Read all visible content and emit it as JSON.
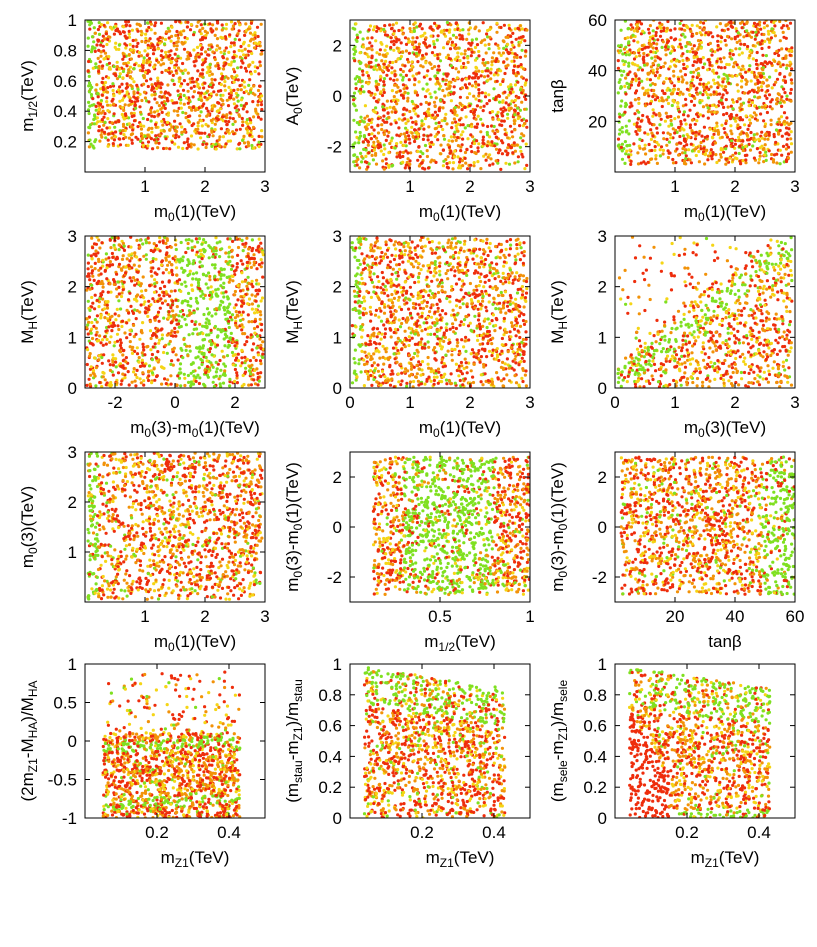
{
  "figure": {
    "description_colors": {
      "red": "#ee2d0c",
      "orange": "#f29208",
      "yellow": "#f5d515",
      "green": "#7fe020"
    }
  },
  "chart_data": [
    {
      "type": "scatter",
      "id": "p1",
      "xlabel": {
        "main": "m",
        "sub": "0",
        "rest": "(1)(TeV)"
      },
      "ylabel": {
        "main": "m",
        "sub": "1/2",
        "rest": "(TeV)"
      },
      "xlim": [
        0,
        3
      ],
      "ylim": [
        0,
        1
      ],
      "xticks": [
        {
          "v": 1,
          "label": "1"
        },
        {
          "v": 2,
          "label": "2"
        },
        {
          "v": 3,
          "label": "3"
        }
      ],
      "yticks": [
        {
          "v": 0.2,
          "label": "0.2"
        },
        {
          "v": 0.4,
          "label": "0.4"
        },
        {
          "v": 0.6,
          "label": "0.6"
        },
        {
          "v": 0.8,
          "label": "0.8"
        },
        {
          "v": 1,
          "label": "1"
        }
      ],
      "region": {
        "xmin": 0.05,
        "xmax": 2.95,
        "ymin": 0.15,
        "ymax": 1.0
      },
      "band": {
        "x": 0.1,
        "width": 0.1,
        "color": "green"
      }
    },
    {
      "type": "scatter",
      "id": "p2",
      "xlabel": {
        "main": "m",
        "sub": "0",
        "rest": "(1)(TeV)"
      },
      "ylabel": {
        "main": "A",
        "sub": "0",
        "rest": "(TeV)"
      },
      "xlim": [
        0,
        3
      ],
      "ylim": [
        -3,
        3
      ],
      "xticks": [
        {
          "v": 1,
          "label": "1"
        },
        {
          "v": 2,
          "label": "2"
        },
        {
          "v": 3,
          "label": "3"
        }
      ],
      "yticks": [
        {
          "v": -2,
          "label": "-2"
        },
        {
          "v": 0,
          "label": "0"
        },
        {
          "v": 2,
          "label": "2"
        }
      ],
      "region": {
        "xmin": 0.05,
        "xmax": 2.95,
        "ymin": -2.9,
        "ymax": 2.9
      },
      "band": {
        "x": 0.12,
        "width": 0.12,
        "color": "green"
      }
    },
    {
      "type": "scatter",
      "id": "p3",
      "xlabel": {
        "main": "m",
        "sub": "0",
        "rest": "(1)(TeV)"
      },
      "ylabel": {
        "main": "tanβ",
        "sub": "",
        "rest": ""
      },
      "xlim": [
        0,
        3
      ],
      "ylim": [
        0,
        60
      ],
      "xticks": [
        {
          "v": 1,
          "label": "1"
        },
        {
          "v": 2,
          "label": "2"
        },
        {
          "v": 3,
          "label": "3"
        }
      ],
      "yticks": [
        {
          "v": 20,
          "label": "20"
        },
        {
          "v": 40,
          "label": "40"
        },
        {
          "v": 60,
          "label": "60"
        }
      ],
      "region": {
        "xmin": 0.05,
        "xmax": 2.95,
        "ymin": 3,
        "ymax": 60
      },
      "band": {
        "x": 0.12,
        "width": 0.12,
        "color": "green"
      }
    },
    {
      "type": "scatter",
      "id": "p4",
      "xlabel": {
        "main": "m",
        "sub": "0",
        "rest": "(3)-m",
        "sub2": "0",
        "rest2": "(1)(TeV)"
      },
      "ylabel": {
        "main": "M",
        "sub": "H",
        "rest": "(TeV)"
      },
      "xlim": [
        -3,
        3
      ],
      "ylim": [
        0,
        3
      ],
      "xticks": [
        {
          "v": -2,
          "label": "-2"
        },
        {
          "v": 0,
          "label": "0"
        },
        {
          "v": 2,
          "label": "2"
        }
      ],
      "yticks": [
        {
          "v": 0,
          "label": "0"
        },
        {
          "v": 1,
          "label": "1"
        },
        {
          "v": 2,
          "label": "2"
        },
        {
          "v": 3,
          "label": "3"
        }
      ],
      "region": {
        "xmin": -2.95,
        "xmax": 2.95,
        "ymin": 0.02,
        "ymax": 2.98
      },
      "band": {
        "x": 1.0,
        "width": 0.9,
        "color": "green"
      }
    },
    {
      "type": "scatter",
      "id": "p5",
      "xlabel": {
        "main": "m",
        "sub": "0",
        "rest": "(1)(TeV)"
      },
      "ylabel": {
        "main": "M",
        "sub": "H",
        "rest": "(TeV)"
      },
      "xlim": [
        0,
        3
      ],
      "ylim": [
        0,
        3
      ],
      "xticks": [
        {
          "v": 0,
          "label": "0"
        },
        {
          "v": 1,
          "label": "1"
        },
        {
          "v": 2,
          "label": "2"
        },
        {
          "v": 3,
          "label": "3"
        }
      ],
      "yticks": [
        {
          "v": 0,
          "label": "0"
        },
        {
          "v": 1,
          "label": "1"
        },
        {
          "v": 2,
          "label": "2"
        },
        {
          "v": 3,
          "label": "3"
        }
      ],
      "region": {
        "xmin": 0.03,
        "xmax": 2.95,
        "ymin": 0.02,
        "ymax": 2.98
      },
      "band": {
        "x": 0.1,
        "width": 0.1,
        "color": "green"
      }
    },
    {
      "type": "scatter",
      "id": "p6",
      "xlabel": {
        "main": "m",
        "sub": "0",
        "rest": "(3)(TeV)"
      },
      "ylabel": {
        "main": "M",
        "sub": "H",
        "rest": "(TeV)"
      },
      "xlim": [
        0,
        3
      ],
      "ylim": [
        0,
        3
      ],
      "xticks": [
        {
          "v": 0,
          "label": "0"
        },
        {
          "v": 1,
          "label": "1"
        },
        {
          "v": 2,
          "label": "2"
        },
        {
          "v": 3,
          "label": "3"
        }
      ],
      "yticks": [
        {
          "v": 0,
          "label": "0"
        },
        {
          "v": 1,
          "label": "1"
        },
        {
          "v": 2,
          "label": "2"
        },
        {
          "v": 3,
          "label": "3"
        }
      ],
      "region": {
        "xmin": 0.03,
        "xmax": 2.95,
        "ymin": 0.02,
        "ymax": 2.98
      },
      "band": {
        "diag": true,
        "color": "green"
      }
    },
    {
      "type": "scatter",
      "id": "p7",
      "xlabel": {
        "main": "m",
        "sub": "0",
        "rest": "(1)(TeV)"
      },
      "ylabel": {
        "main": "m",
        "sub": "0",
        "rest": "(3)(TeV)"
      },
      "xlim": [
        0,
        3
      ],
      "ylim": [
        0,
        3
      ],
      "xticks": [
        {
          "v": 1,
          "label": "1"
        },
        {
          "v": 2,
          "label": "2"
        },
        {
          "v": 3,
          "label": "3"
        }
      ],
      "yticks": [
        {
          "v": 1,
          "label": "1"
        },
        {
          "v": 2,
          "label": "2"
        },
        {
          "v": 3,
          "label": "3"
        }
      ],
      "region": {
        "xmin": 0.05,
        "xmax": 2.95,
        "ymin": 0.05,
        "ymax": 2.98
      },
      "band": {
        "x": 0.12,
        "width": 0.1,
        "color": "green"
      }
    },
    {
      "type": "scatter",
      "id": "p8",
      "xlabel": {
        "main": "m",
        "sub": "1/2",
        "rest": "(TeV)"
      },
      "ylabel": {
        "main": "m",
        "sub": "0",
        "rest": "(3)-m",
        "sub2": "0",
        "rest2": "(1)(TeV)"
      },
      "xlim": [
        0,
        1
      ],
      "ylim": [
        -3,
        3
      ],
      "xticks": [
        {
          "v": 0.5,
          "label": "0.5"
        },
        {
          "v": 1,
          "label": "1"
        }
      ],
      "yticks": [
        {
          "v": -2,
          "label": "-2"
        },
        {
          "v": 0,
          "label": "0"
        },
        {
          "v": 2,
          "label": "2"
        }
      ],
      "region": {
        "xmin": 0.13,
        "xmax": 1.0,
        "ymin": -2.7,
        "ymax": 2.8
      },
      "band": {
        "x": 0.55,
        "width": 0.25,
        "color": "green",
        "y": 0.3
      }
    },
    {
      "type": "scatter",
      "id": "p9",
      "xlabel": {
        "main": "tanβ",
        "sub": "",
        "rest": ""
      },
      "ylabel": {
        "main": "m",
        "sub": "0",
        "rest": "(3)-m",
        "sub2": "0",
        "rest2": "(1)(TeV)"
      },
      "xlim": [
        0,
        60
      ],
      "ylim": [
        -3,
        3
      ],
      "xticks": [
        {
          "v": 20,
          "label": "20"
        },
        {
          "v": 40,
          "label": "40"
        },
        {
          "v": 60,
          "label": "60"
        }
      ],
      "yticks": [
        {
          "v": -2,
          "label": "-2"
        },
        {
          "v": 0,
          "label": "0"
        },
        {
          "v": 2,
          "label": "2"
        }
      ],
      "region": {
        "xmin": 2,
        "xmax": 60,
        "ymin": -2.7,
        "ymax": 2.8
      },
      "band": {
        "x": 55,
        "width": 6,
        "color": "green"
      }
    },
    {
      "type": "scatter",
      "id": "p10",
      "xlabel": {
        "main": "m",
        "sub": "Z1",
        "rest": "(TeV)"
      },
      "ylabel": {
        "main": "(2m",
        "sub": "Z1",
        "rest": "-M",
        "sub2": "HA",
        "rest2": ")/M",
        "sub3": "HA"
      },
      "xlim": [
        0,
        0.5
      ],
      "ylim": [
        -1,
        1
      ],
      "xticks": [
        {
          "v": 0.2,
          "label": "0.2"
        },
        {
          "v": 0.4,
          "label": "0.4"
        }
      ],
      "yticks": [
        {
          "v": -1,
          "label": "-1"
        },
        {
          "v": -0.5,
          "label": "-0.5"
        },
        {
          "v": 0,
          "label": "0"
        },
        {
          "v": 0.5,
          "label": "0.5"
        },
        {
          "v": 1,
          "label": "1"
        }
      ],
      "region": {
        "xmin": 0.05,
        "xmax": 0.43,
        "ymin": -1.0,
        "ymax": 0.9
      },
      "band": {
        "bands": [
          -0.05,
          -0.8
        ],
        "color": "green"
      }
    },
    {
      "type": "scatter",
      "id": "p11",
      "xlabel": {
        "main": "m",
        "sub": "Z1",
        "rest": "(TeV)"
      },
      "ylabel": {
        "main": "(m",
        "sub": "stau",
        "rest": "-m",
        "sub2": "Z1",
        "rest2": ")/m",
        "sub3": "stau"
      },
      "xlim": [
        0,
        0.5
      ],
      "ylim": [
        0,
        1
      ],
      "xticks": [
        {
          "v": 0.2,
          "label": "0.2"
        },
        {
          "v": 0.4,
          "label": "0.4"
        }
      ],
      "yticks": [
        {
          "v": 0,
          "label": "0"
        },
        {
          "v": 0.2,
          "label": "0.2"
        },
        {
          "v": 0.4,
          "label": "0.4"
        },
        {
          "v": 0.6,
          "label": "0.6"
        },
        {
          "v": 0.8,
          "label": "0.8"
        },
        {
          "v": 1,
          "label": "1"
        }
      ],
      "region": {
        "xmin": 0.04,
        "xmax": 0.43,
        "ymin": 0.0,
        "ymax": 0.98
      },
      "band": {
        "top": true,
        "color": "green"
      }
    },
    {
      "type": "scatter",
      "id": "p12",
      "xlabel": {
        "main": "m",
        "sub": "Z1",
        "rest": "(TeV)"
      },
      "ylabel": {
        "main": "(m",
        "sub": "sele",
        "rest": "-m",
        "sub2": "Z1",
        "rest2": ")/m",
        "sub3": "sele"
      },
      "xlim": [
        0,
        0.5
      ],
      "ylim": [
        0,
        1
      ],
      "xticks": [
        {
          "v": 0.2,
          "label": "0.2"
        },
        {
          "v": 0.4,
          "label": "0.4"
        }
      ],
      "yticks": [
        {
          "v": 0,
          "label": "0"
        },
        {
          "v": 0.2,
          "label": "0.2"
        },
        {
          "v": 0.4,
          "label": "0.4"
        },
        {
          "v": 0.6,
          "label": "0.6"
        },
        {
          "v": 0.8,
          "label": "0.8"
        },
        {
          "v": 1,
          "label": "1"
        }
      ],
      "region": {
        "xmin": 0.04,
        "xmax": 0.43,
        "ymin": 0.0,
        "ymax": 0.98
      },
      "band": {
        "top": true,
        "bottomRed": true,
        "color": "green"
      }
    }
  ]
}
